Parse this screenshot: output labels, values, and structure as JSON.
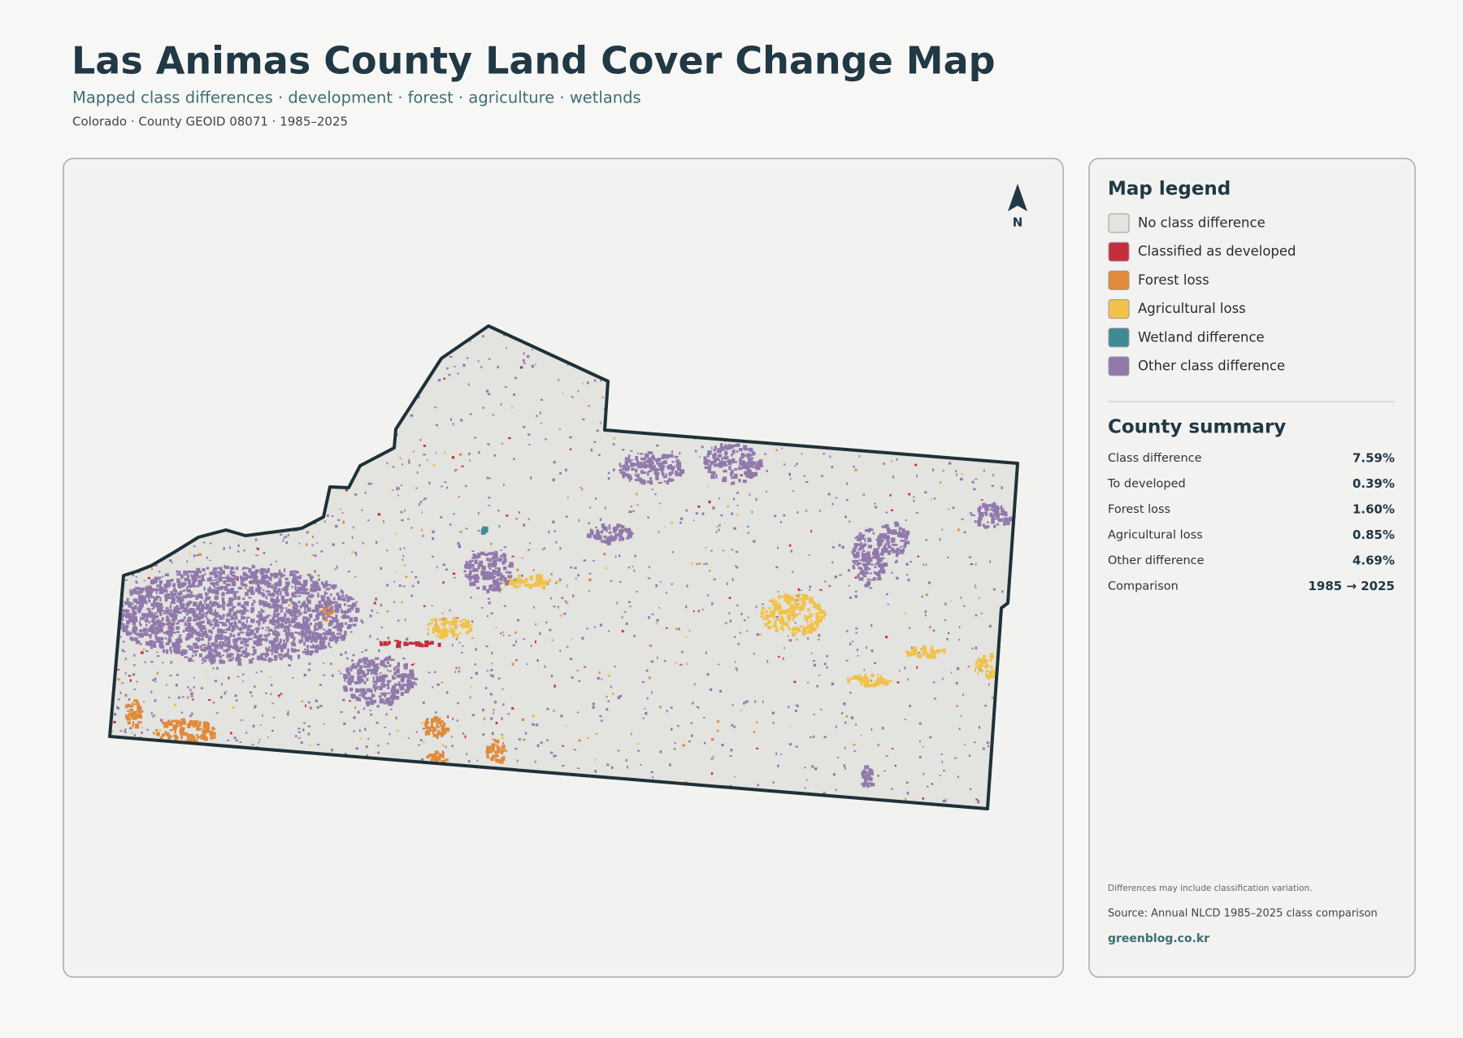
{
  "header": {
    "title": "Las Animas County Land Cover Change Map",
    "subtitle": "Mapped class differences · development · forest · agriculture · wetlands",
    "meta": "Colorado · County GEOID 08071 · 1985–2025"
  },
  "map": {
    "north_label": "N"
  },
  "legend": {
    "title": "Map legend",
    "items": [
      {
        "label": "No class difference",
        "color": "#e3e3e0"
      },
      {
        "label": "Classified as developed",
        "color": "#c62d3c"
      },
      {
        "label": "Forest loss",
        "color": "#e08a3a"
      },
      {
        "label": "Agricultural loss",
        "color": "#f0c24a"
      },
      {
        "label": "Wetland difference",
        "color": "#3f8b95"
      },
      {
        "label": "Other class difference",
        "color": "#9179ab"
      }
    ]
  },
  "summary": {
    "title": "County summary",
    "rows": [
      {
        "label": "Class difference",
        "value": "7.59%"
      },
      {
        "label": "To developed",
        "value": "0.39%"
      },
      {
        "label": "Forest loss",
        "value": "1.60%"
      },
      {
        "label": "Agricultural loss",
        "value": "0.85%"
      },
      {
        "label": "Other difference",
        "value": "4.69%"
      },
      {
        "label": "Comparison",
        "value": "1985 → 2025"
      }
    ]
  },
  "footer": {
    "note": "Differences may include classification variation.",
    "source": "Source: Annual NLCD 1985–2025 class comparison",
    "credit": "greenblog.co.kr"
  }
}
